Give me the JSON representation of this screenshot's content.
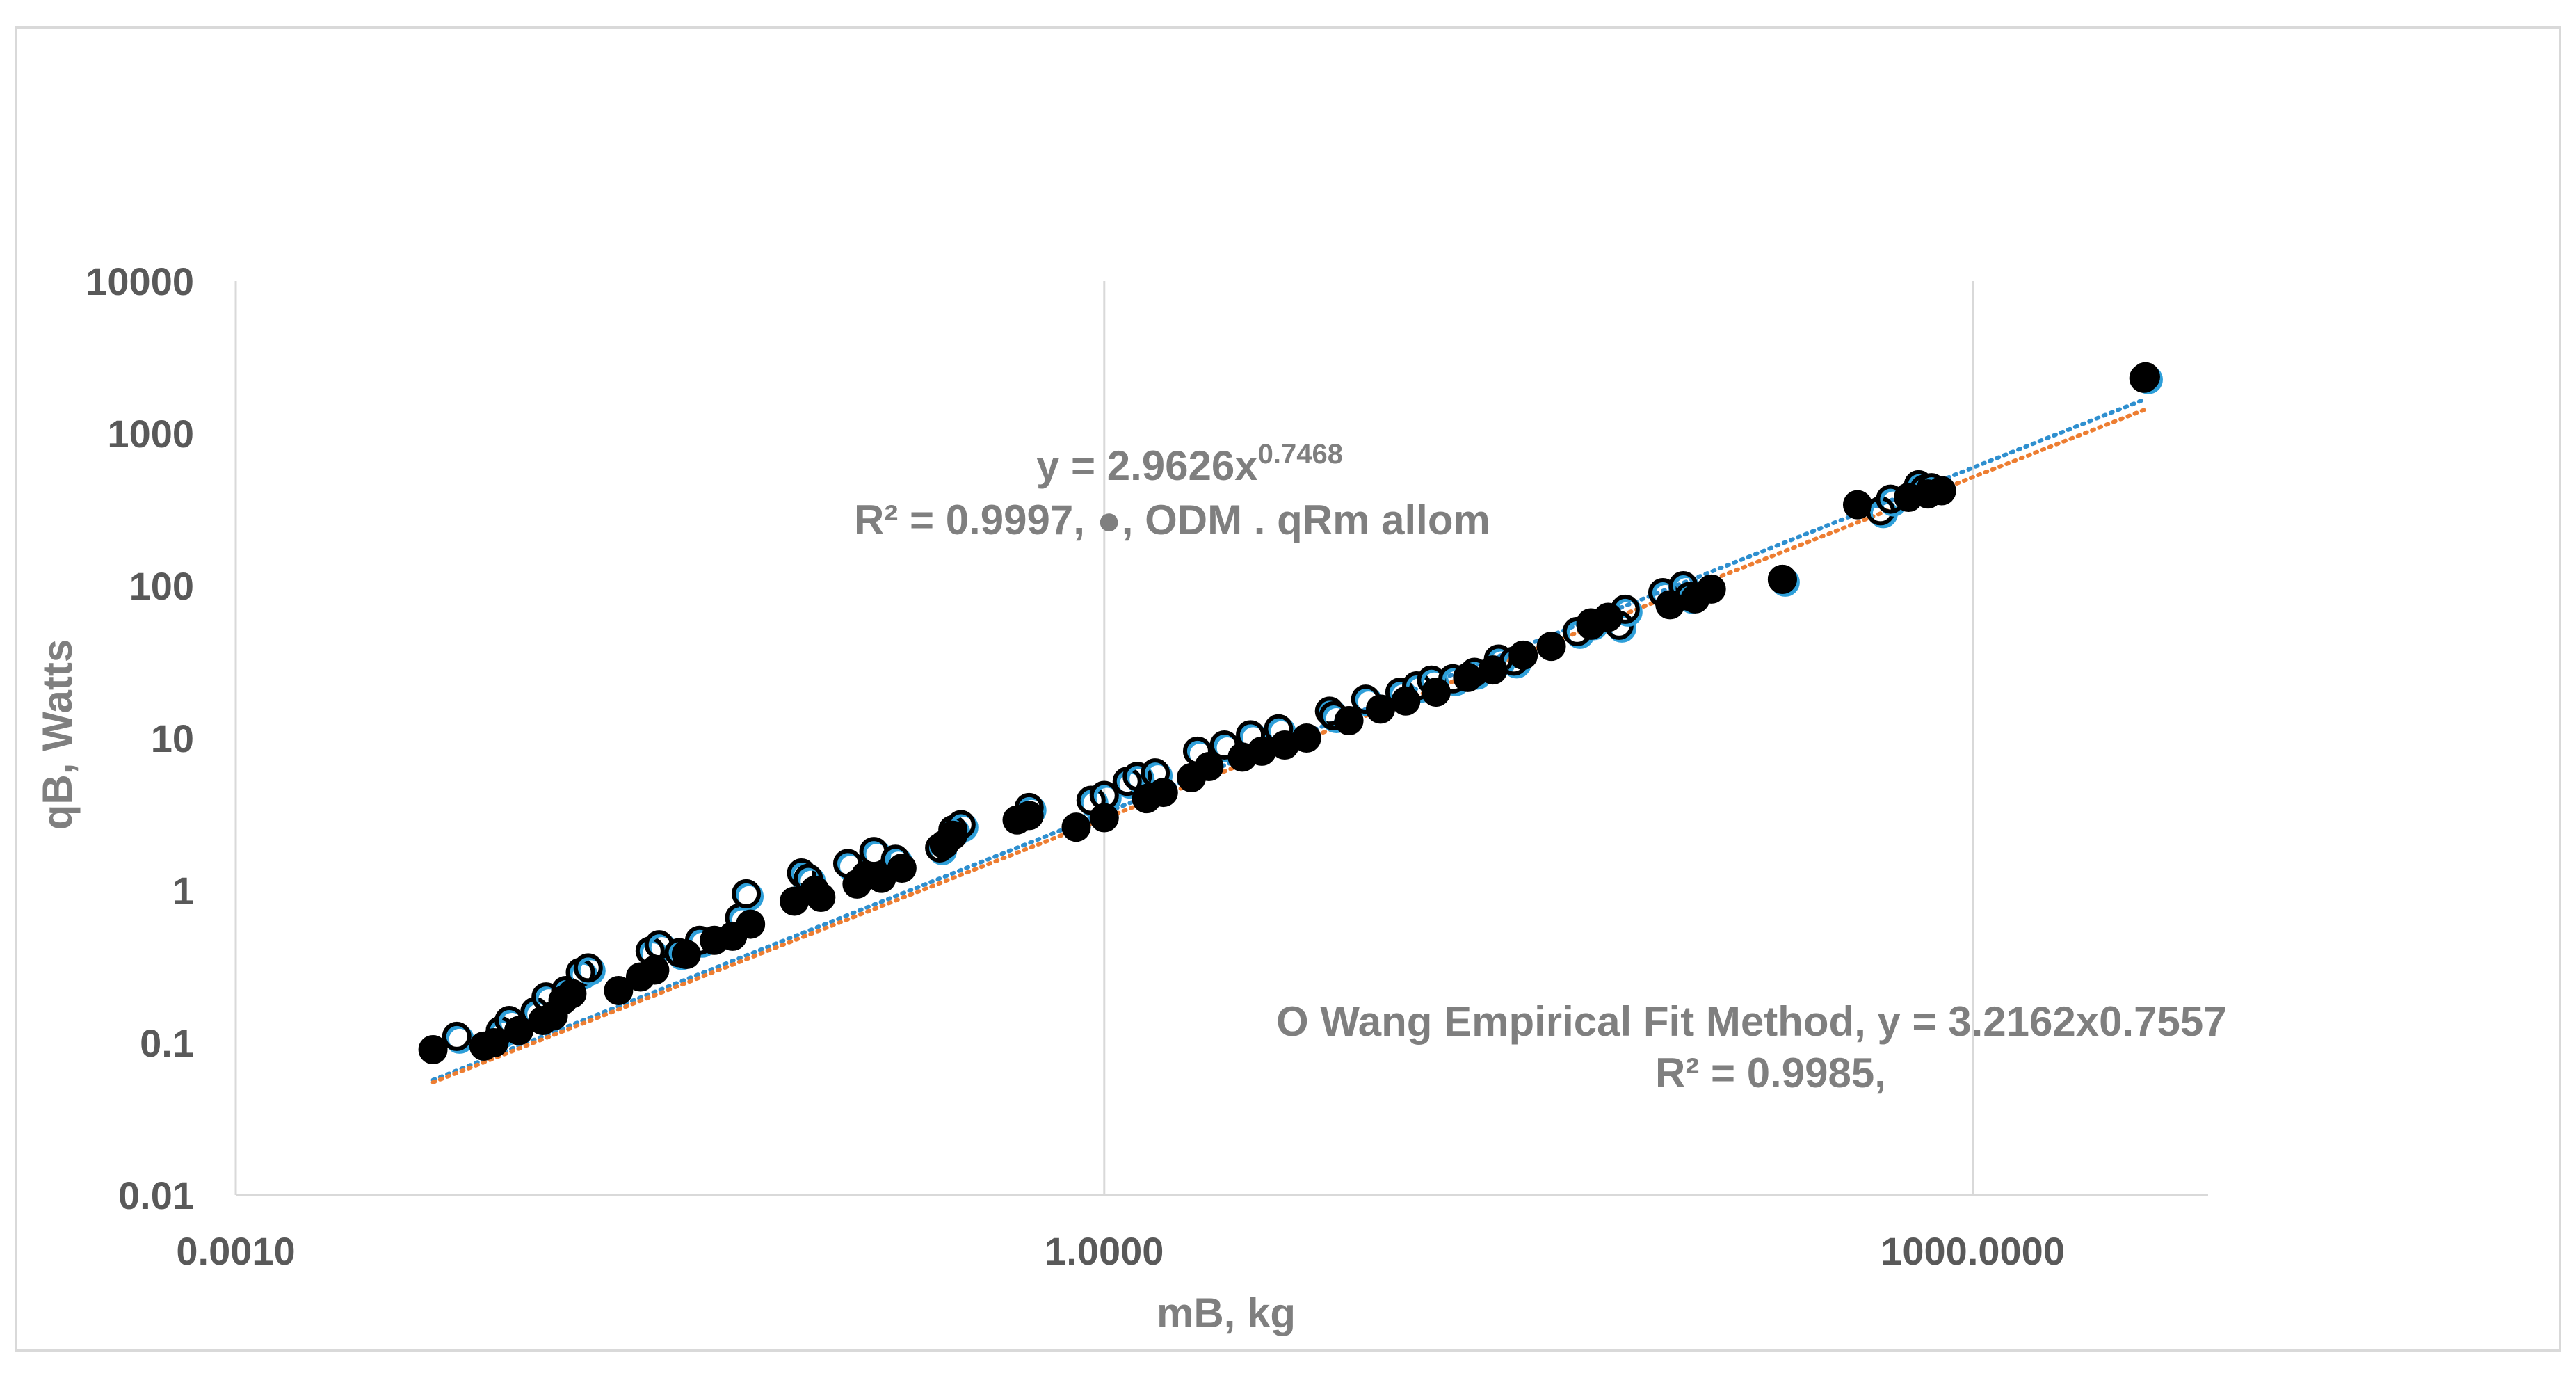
{
  "chart_data": {
    "type": "scatter",
    "xscale": "log",
    "yscale": "log",
    "xlim": [
      0.001,
      6500
    ],
    "ylim": [
      0.01,
      10000
    ],
    "xticks": [
      0.001,
      1,
      1000
    ],
    "xtick_labels": [
      "0.0010",
      "1.0000",
      "1000.0000"
    ],
    "yticks": [
      0.01,
      0.1,
      1,
      10,
      100,
      1000,
      10000
    ],
    "ytick_labels": [
      "0.01",
      "0.1",
      "1",
      "10",
      "100",
      "1000",
      "10000"
    ],
    "xlabel": "mB, kg",
    "ylabel": "qB, Watts",
    "grid": {
      "vertical": true,
      "horizontal": false
    },
    "colors": {
      "odm_trend": "#ed7d31",
      "wang_trend": "#2e8fcf",
      "wang_marker_edge": "#2e9fd9",
      "odm_marker": "#000000",
      "axis": "#d9d9d9",
      "text": "#7f7f7f"
    },
    "annotations": {
      "odm_eq_base": "y = 2.9626x",
      "odm_eq_exp": "0.7468",
      "odm_r2": "R² = 0.9997,  ●, ODM . qRm allom",
      "wang_eq": "O Wang Empirical Fit Method, y = 3.2162x0.7557",
      "wang_r2": "R² = 0.9985,"
    },
    "series": [
      {
        "marker": "filled-circle",
        "trend": {
          "coef": 2.9626,
          "exp": 0.7468,
          "x_range": [
            0.0048,
            3900
          ]
        },
        "x": [
          0.0048,
          0.0072,
          0.0078,
          0.0095,
          0.0115,
          0.0125,
          0.0135,
          0.0145,
          0.021,
          0.025,
          0.028,
          0.036,
          0.045,
          0.052,
          0.06,
          0.085,
          0.1,
          0.105,
          0.14,
          0.15,
          0.17,
          0.2,
          0.28,
          0.3,
          0.5,
          0.55,
          0.8,
          1.0,
          1.4,
          1.6,
          2.0,
          2.3,
          3.0,
          3.5,
          4.2,
          5.0,
          7.0,
          9.0,
          11.0,
          14.0,
          18.0,
          22.0,
          28.0,
          35.0,
          48.0,
          55.0,
          90.0,
          110.0,
          125.0,
          220.0,
          400.0,
          600.0,
          700.0,
          780.0,
          3900.0
        ],
        "y": [
          0.09,
          0.095,
          0.1,
          0.12,
          0.14,
          0.15,
          0.19,
          0.21,
          0.22,
          0.27,
          0.3,
          0.38,
          0.47,
          0.5,
          0.6,
          0.85,
          1.0,
          0.9,
          1.1,
          1.25,
          1.2,
          1.4,
          2.0,
          2.3,
          2.9,
          3.1,
          2.6,
          3.0,
          4.0,
          4.4,
          5.5,
          6.5,
          7.5,
          8.2,
          9.0,
          10.0,
          13.0,
          15.5,
          17.5,
          20.0,
          25.0,
          28.0,
          35.0,
          40.0,
          55.0,
          62.0,
          75.0,
          82.0,
          95.0,
          110.0,
          340.0,
          380.0,
          400.0,
          420.0,
          2300.0
        ]
      },
      {
        "marker": "open-circle",
        "trend": {
          "coef": 3.2162,
          "exp": 0.7557,
          "x_range": [
            0.0048,
            3900
          ]
        },
        "x": [
          0.0058,
          0.0082,
          0.0088,
          0.0108,
          0.0118,
          0.0138,
          0.0155,
          0.0165,
          0.027,
          0.029,
          0.034,
          0.04,
          0.055,
          0.058,
          0.09,
          0.095,
          0.13,
          0.16,
          0.19,
          0.27,
          0.3,
          0.32,
          0.55,
          0.9,
          1.0,
          1.2,
          1.3,
          1.5,
          2.1,
          2.6,
          3.2,
          4.0,
          6.0,
          6.2,
          8.0,
          10.5,
          12.0,
          13.5,
          16.0,
          19.0,
          23.0,
          26.0,
          43.0,
          48.0,
          60.0,
          63.0,
          85.0,
          100.0,
          105.0,
          220.0,
          480.0,
          520.0,
          650.0,
          680.0,
          720.0,
          3950.0
        ],
        "y": [
          0.11,
          0.12,
          0.14,
          0.16,
          0.2,
          0.22,
          0.29,
          0.31,
          0.4,
          0.44,
          0.39,
          0.47,
          0.66,
          0.95,
          1.3,
          1.2,
          1.5,
          1.8,
          1.6,
          1.9,
          2.5,
          2.7,
          3.5,
          3.9,
          4.2,
          5.2,
          5.6,
          5.9,
          8.2,
          9.0,
          10.5,
          11.5,
          15.0,
          14.0,
          18.0,
          20.0,
          22.0,
          24.0,
          24.5,
          27.0,
          33.0,
          32.0,
          50.0,
          57.0,
          55.0,
          70.0,
          90.0,
          100.0,
          85.0,
          110.0,
          310.0,
          370.0,
          460.0,
          430.0,
          440.0,
          2350.0
        ]
      }
    ]
  }
}
